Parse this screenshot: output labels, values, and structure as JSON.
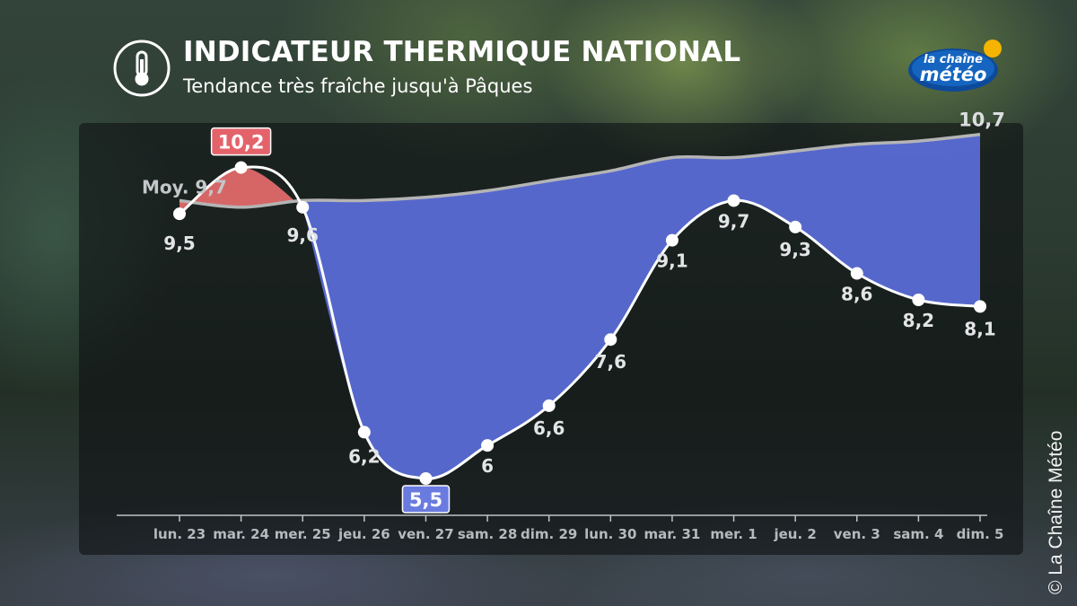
{
  "header": {
    "title": "INDICATEUR THERMIQUE NATIONAL",
    "subtitle": "Tendance très fraîche jusqu'à Pâques",
    "icon": "thermometer-icon"
  },
  "logo": {
    "line1": "la chaîne",
    "line2": "météo"
  },
  "copyright": "© La Chaîne Météo",
  "colors": {
    "cold_fill": "#5a6bd6",
    "warm_fill": "#e06a6a",
    "normal_line": "#b4b4b4",
    "observed_line": "#ffffff",
    "max_label_bg": "#e4636b",
    "min_label_bg": "#6a7be0"
  },
  "chart_data": {
    "type": "line",
    "categories": [
      "lun. 23",
      "mar. 24",
      "mer. 25",
      "jeu. 26",
      "ven. 27",
      "sam. 28",
      "dim. 29",
      "lun. 30",
      "mar. 31",
      "mer. 1",
      "jeu. 2",
      "ven. 3",
      "sam. 4",
      "dim. 5"
    ],
    "series": [
      {
        "values": [
          9.5,
          10.2,
          9.6,
          6.2,
          5.5,
          6,
          6.6,
          7.6,
          9.1,
          9.7,
          9.3,
          8.6,
          8.2,
          8.1
        ],
        "labels": [
          "9,5",
          "10,2",
          "9,6",
          "6,2",
          "5,5",
          "6",
          "6,6",
          "7,6",
          "9,1",
          "9,7",
          "9,3",
          "8,6",
          "8,2",
          "8,1"
        ]
      },
      {
        "values": [
          9.7,
          9.6,
          9.7,
          9.7,
          9.75,
          9.85,
          10.0,
          10.15,
          10.35,
          10.35,
          10.45,
          10.55,
          10.6,
          10.7
        ]
      }
    ],
    "normal_start_label": "Moy. 9,7",
    "normal_end_label": "10,7",
    "highlight_max_index": 1,
    "highlight_min_index": 4,
    "ylim": [
      5,
      11
    ],
    "grid": false,
    "legend": "none"
  }
}
